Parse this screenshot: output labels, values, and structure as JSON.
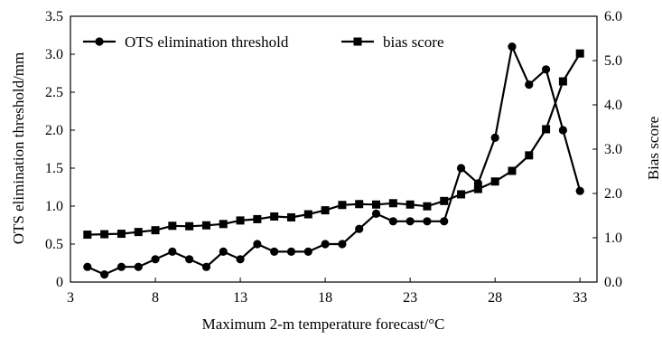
{
  "chart_data": {
    "type": "line",
    "xlabel": "Maximum 2-m temperature forecast/°C",
    "ylabel_left": "OTS elimination threshold/mm",
    "ylabel_right": "Bias score",
    "xlim": [
      3,
      34
    ],
    "ylim_left": [
      0,
      3.5
    ],
    "ylim_right": [
      0,
      6
    ],
    "x_ticks": [
      3,
      8,
      13,
      18,
      23,
      28,
      33
    ],
    "y_left_ticks": [
      "0",
      "0.5",
      "1.0",
      "1.5",
      "2.0",
      "2.5",
      "3.0",
      "3.5"
    ],
    "y_right_ticks": [
      "0.0",
      "1.0",
      "2.0",
      "3.0",
      "4.0",
      "5.0",
      "6.0"
    ],
    "legend_position": "top",
    "grid": false,
    "x": [
      4,
      5,
      6,
      7,
      8,
      9,
      10,
      11,
      12,
      13,
      14,
      15,
      16,
      17,
      18,
      19,
      20,
      21,
      22,
      23,
      24,
      25,
      26,
      27,
      28,
      29,
      30,
      31,
      32,
      33
    ],
    "series": [
      {
        "name": "OTS elimination threshold",
        "axis": "left",
        "marker": "circle",
        "values": [
          0.2,
          0.1,
          0.2,
          0.2,
          0.3,
          0.4,
          0.3,
          0.2,
          0.4,
          0.3,
          0.5,
          0.4,
          0.4,
          0.4,
          0.5,
          0.5,
          0.7,
          0.9,
          0.8,
          0.8,
          0.8,
          0.8,
          1.5,
          1.3,
          1.9,
          3.1,
          2.6,
          2.8,
          2.0,
          1.2
        ]
      },
      {
        "name": "bias score",
        "axis": "right",
        "marker": "square",
        "values": [
          1.07,
          1.08,
          1.09,
          1.13,
          1.17,
          1.27,
          1.26,
          1.28,
          1.31,
          1.39,
          1.42,
          1.48,
          1.46,
          1.53,
          1.62,
          1.74,
          1.76,
          1.75,
          1.78,
          1.75,
          1.71,
          1.83,
          1.98,
          2.1,
          2.27,
          2.51,
          2.86,
          3.45,
          4.53,
          5.16
        ]
      }
    ]
  },
  "colors": {
    "line": "#000000",
    "background": "#ffffff"
  }
}
